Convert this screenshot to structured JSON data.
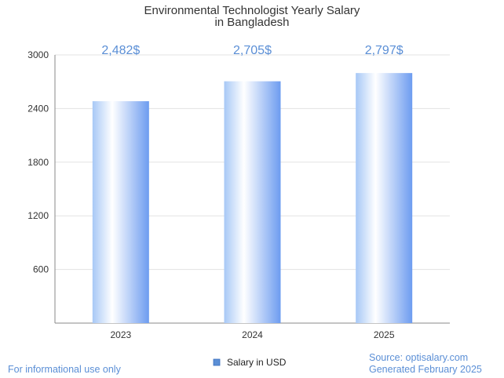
{
  "colors": {
    "accent": "#5b8fd6",
    "bar_light": "#ffffff",
    "bar_mid": "#a7c8f6",
    "bar_dark": "#6d9cf0",
    "legend_swatch": "#5b8fd6",
    "axis": "#888888",
    "grid": "#e3e3e3",
    "text": "#333333"
  },
  "footer": {
    "disclaimer": "For informational use only",
    "source": "Source: optisalary.com",
    "generated": "Generated February 2025"
  },
  "chart_data": {
    "type": "bar",
    "title_lines": [
      "Environmental Technologist Yearly Salary",
      "in Bangladesh"
    ],
    "categories": [
      "2023",
      "2024",
      "2025"
    ],
    "series": [
      {
        "name": "Salary in USD",
        "values": [
          2482,
          2705,
          2797
        ]
      }
    ],
    "data_labels": [
      "2,482$",
      "2,705$",
      "2,797$"
    ],
    "y_ticks": [
      600,
      1200,
      1800,
      2400,
      3000
    ],
    "y_tick_labels": [
      "600",
      "1200",
      "1800",
      "2400",
      "3000"
    ],
    "ylim": [
      0,
      3000
    ],
    "grid": true,
    "legend_position": "bottom-center",
    "xlabel": "",
    "ylabel": ""
  }
}
